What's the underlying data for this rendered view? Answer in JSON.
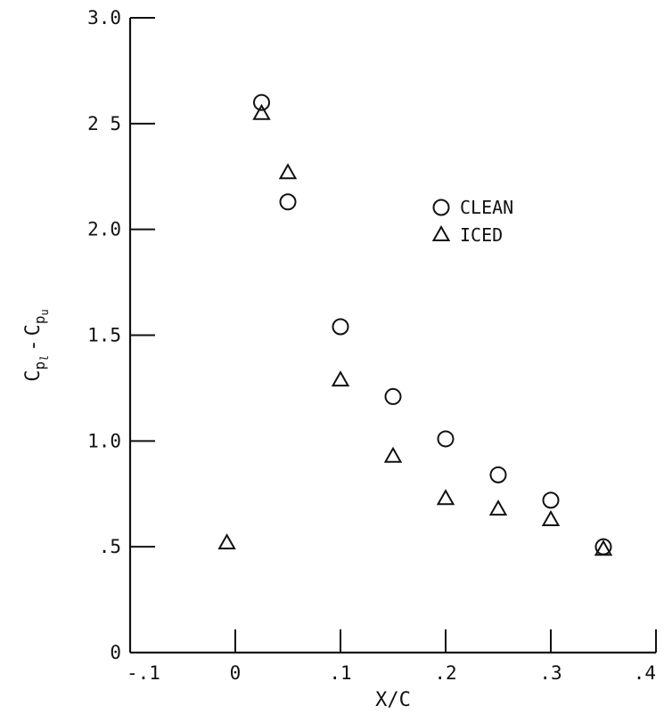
{
  "chart_data": {
    "type": "scatter",
    "title": "",
    "xlabel": "X/C",
    "ylabel_main": "C",
    "ylabel_sub1": "p",
    "ylabel_subsub1": "l",
    "ylabel_minus": "-",
    "ylabel_sub2": "p",
    "ylabel_subsub2": "u",
    "xlim": [
      -0.1,
      0.4
    ],
    "ylim": [
      0,
      3.0
    ],
    "xticks": [
      -0.1,
      0,
      0.1,
      0.2,
      0.3,
      0.4
    ],
    "xtick_labels": [
      "-.1",
      "0",
      ".1",
      ".2",
      ".3",
      ".4"
    ],
    "yticks": [
      0,
      0.5,
      1.0,
      1.5,
      2.0,
      2.5,
      3.0
    ],
    "ytick_labels": [
      "0",
      ".5",
      "1.0",
      "1.5",
      "2.0",
      "2 5",
      "3.0"
    ],
    "grid": false,
    "legend_position": "upper-right",
    "series": [
      {
        "name": "CLEAN",
        "marker": "circle",
        "x": [
          0.025,
          0.05,
          0.1,
          0.15,
          0.2,
          0.25,
          0.3,
          0.35
        ],
        "y": [
          2.6,
          2.13,
          1.54,
          1.21,
          1.01,
          0.84,
          0.72,
          0.5
        ]
      },
      {
        "name": "ICED",
        "marker": "triangle",
        "x": [
          -0.008,
          0.025,
          0.05,
          0.1,
          0.15,
          0.2,
          0.25,
          0.3,
          0.35
        ],
        "y": [
          0.52,
          2.55,
          2.27,
          1.29,
          0.93,
          0.73,
          0.68,
          0.63,
          0.49
        ]
      }
    ]
  }
}
